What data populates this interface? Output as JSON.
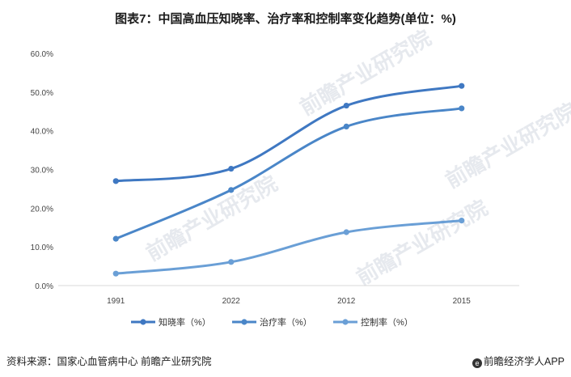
{
  "title": "图表7：中国高血压知晓率、治疗率和控制率变化趋势(单位：%)",
  "footer": {
    "source": "资料来源：国家心血管病中心 前瞻产业研究院",
    "brand": "前瞻经济学人APP"
  },
  "watermark": "前瞻产业研究院",
  "colors": {
    "series1": "#3f78c2",
    "series2": "#4a86c8",
    "series3": "#6a9fd6",
    "grid": "#d9d9d9"
  },
  "chart_data": {
    "type": "line",
    "title": "图表7：中国高血压知晓率、治疗率和控制率变化趋势(单位：%)",
    "categories": [
      "1991",
      "2022",
      "2012",
      "2015"
    ],
    "y_ticks": [
      "0.0%",
      "10.0%",
      "20.0%",
      "30.0%",
      "40.0%",
      "50.0%",
      "60.0%"
    ],
    "ylim": [
      0,
      60
    ],
    "grid": false,
    "legend_position": "bottom",
    "series": [
      {
        "name": "知晓率（%）",
        "values": [
          27.0,
          30.2,
          46.5,
          51.6
        ]
      },
      {
        "name": "治疗率（%）",
        "values": [
          12.1,
          24.7,
          41.1,
          45.8
        ]
      },
      {
        "name": "控制率（%）",
        "values": [
          3.1,
          6.1,
          13.8,
          16.8
        ]
      }
    ]
  }
}
